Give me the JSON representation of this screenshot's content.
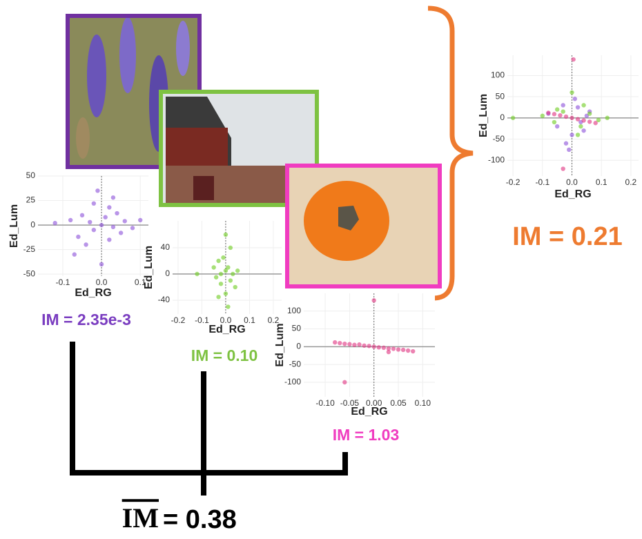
{
  "chart_data": [
    {
      "type": "scatter",
      "x_label": "Ed_RG",
      "y_label": "Ed_Lum",
      "annotation": "IM = 2.35e-3",
      "grid": true,
      "xlim": [
        -0.164,
        0.121
      ],
      "ylim": [
        -52,
        50
      ],
      "xticks": [
        -0.1,
        {
          "value": 0,
          "label": "0.0"
        },
        0.1
      ],
      "yticks": [
        50,
        25,
        0,
        -25,
        -50
      ],
      "series": [
        {
          "color": "#8a4fd8",
          "x": [
            -0.08,
            -0.06,
            -0.05,
            -0.04,
            -0.03,
            -0.02,
            -0.02,
            -0.01,
            0,
            0,
            0.01,
            0.02,
            0.02,
            0.03,
            0.04,
            0.05,
            0.06,
            0.08,
            -0.12,
            0.1,
            -0.07,
            0.03
          ],
          "y": [
            5,
            -12,
            10,
            -20,
            3,
            22,
            -5,
            35,
            0,
            -40,
            8,
            -15,
            18,
            -2,
            12,
            -8,
            4,
            -3,
            2,
            5,
            -30,
            28
          ]
        }
      ]
    },
    {
      "type": "scatter",
      "x_label": "Ed_RG",
      "y_label": "Ed_Lum",
      "annotation": "IM = 0.10",
      "grid": true,
      "xlim": [
        -0.223,
        0.235
      ],
      "ylim": [
        -61,
        81
      ],
      "xticks": [
        -0.2,
        -0.1,
        {
          "value": 0,
          "label": "0.0"
        },
        0.1,
        0.2
      ],
      "yticks": [
        40,
        0,
        -40
      ],
      "series": [
        {
          "color": "#6ccb1e",
          "x": [
            -0.05,
            -0.04,
            -0.03,
            -0.02,
            -0.02,
            -0.01,
            0,
            0,
            0.01,
            0.02,
            0.03,
            0.04,
            -0.12,
            0.05,
            0,
            0.01,
            -0.03,
            0.02
          ],
          "y": [
            10,
            -5,
            20,
            0,
            -15,
            25,
            5,
            -30,
            10,
            -10,
            0,
            -20,
            0,
            5,
            60,
            -50,
            -35,
            40
          ]
        }
      ]
    },
    {
      "type": "scatter",
      "x_label": "Ed_RG",
      "y_label": "Ed_Lum",
      "annotation": "IM = 1.03",
      "grid": true,
      "xlim": [
        -0.144,
        0.125
      ],
      "ylim": [
        -141,
        150
      ],
      "xticks": [
        {
          "value": -0.1,
          "label": "-0.10"
        },
        -0.05,
        {
          "value": 0,
          "label": "0.00"
        },
        0.05,
        {
          "value": 0.1,
          "label": "0.10"
        }
      ],
      "yticks": [
        100,
        50,
        0,
        -50,
        -100
      ],
      "series": [
        {
          "color": "#e0307f",
          "x": [
            -0.08,
            -0.07,
            -0.06,
            -0.05,
            -0.04,
            -0.03,
            -0.02,
            -0.01,
            0,
            0.01,
            0.02,
            0.03,
            0.04,
            0.05,
            0.06,
            0.07,
            0.08,
            -0.06,
            0,
            0.03
          ],
          "y": [
            12,
            10,
            8,
            7,
            5,
            6,
            3,
            2,
            0,
            -2,
            -3,
            -5,
            -6,
            -8,
            -9,
            -11,
            -13,
            -100,
            130,
            -15
          ]
        }
      ]
    },
    {
      "type": "scatter",
      "x_label": "Ed_RG",
      "y_label": "Ed_Lum",
      "annotation": "IM = 0.21",
      "grid": true,
      "xlim": [
        -0.219,
        0.226
      ],
      "ylim": [
        -137,
        148
      ],
      "xticks": [
        -0.2,
        -0.1,
        {
          "value": 0,
          "label": "0.0"
        },
        0.1,
        0.2
      ],
      "yticks": [
        100,
        50,
        0,
        -50,
        -100
      ],
      "series": [
        {
          "color": "#8a4fd8",
          "x": [
            -0.08,
            -0.05,
            -0.03,
            0,
            0.02,
            0.04,
            0.06,
            -0.02,
            0.01,
            0.03,
            -0.01,
            0.05
          ],
          "y": [
            10,
            -20,
            30,
            -40,
            25,
            -30,
            15,
            -60,
            45,
            -10,
            -75,
            5
          ]
        },
        {
          "color": "#6ccb1e",
          "x": [
            -0.2,
            -0.1,
            -0.06,
            -0.03,
            0,
            0.03,
            0.06,
            0.09,
            0.12,
            -0.05,
            0.02,
            0.04
          ],
          "y": [
            0,
            5,
            -10,
            15,
            60,
            -20,
            10,
            -5,
            0,
            20,
            -40,
            30
          ]
        },
        {
          "color": "#e0307f",
          "x": [
            -0.08,
            -0.06,
            -0.04,
            -0.02,
            0,
            0.02,
            0.04,
            0.06,
            0.08,
            0.005,
            -0.03
          ],
          "y": [
            12,
            9,
            6,
            3,
            0,
            -3,
            -6,
            -9,
            -12,
            138,
            -120
          ]
        }
      ]
    }
  ],
  "mean_annotation": {
    "symbol": "IM",
    "text": "= 0.38"
  }
}
